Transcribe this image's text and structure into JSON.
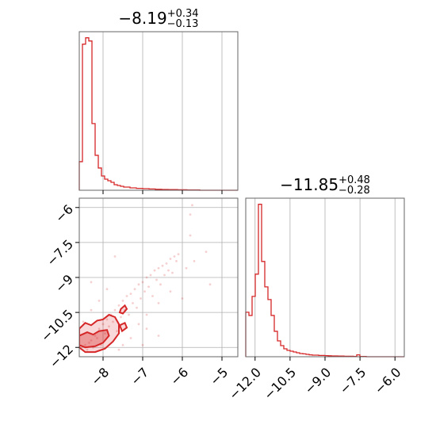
{
  "chart_data": [
    {
      "type": "histogram",
      "title_base": "−8.19",
      "title_sup": "+0.34",
      "title_sub": "−0.13",
      "xlim": [
        -8.6,
        -4.6
      ],
      "x_ticks": [
        -8,
        -7,
        -6,
        -5
      ],
      "y_ticks_shown": false,
      "grid": true,
      "color": "#d62728",
      "bin_width": 0.08,
      "bin_start": -8.6,
      "counts": [
        0.18,
        0.92,
        0.96,
        0.94,
        0.42,
        0.22,
        0.14,
        0.09,
        0.07,
        0.06,
        0.05,
        0.035,
        0.03,
        0.025,
        0.02,
        0.02,
        0.015,
        0.015,
        0.012,
        0.012,
        0.01,
        0.01,
        0.008,
        0.008,
        0.006,
        0.006,
        0.005,
        0.005,
        0.004,
        0.004,
        0.004,
        0.003,
        0.003,
        0.003,
        0.002,
        0.002,
        0.002,
        0.002,
        0.0,
        0.0,
        0.0,
        0.0,
        0.0,
        0.0,
        0.0,
        0.0,
        0.0,
        0.0,
        0.0,
        0.0
      ]
    },
    {
      "type": "scatter",
      "xlim": [
        -8.6,
        -4.6
      ],
      "ylim": [
        -12.4,
        -5.6
      ],
      "x_ticks": [
        -8,
        -7,
        -6,
        -5
      ],
      "y_ticks": [
        -6.0,
        -7.5,
        -9.0,
        -10.5,
        -12.0
      ],
      "grid": true,
      "color": "#d62728",
      "points": [
        [
          -8.45,
          -11.9
        ],
        [
          -8.3,
          -11.7
        ],
        [
          -8.2,
          -11.5
        ],
        [
          -8.1,
          -11.2
        ],
        [
          -8.0,
          -11.0
        ],
        [
          -7.9,
          -10.8
        ],
        [
          -7.8,
          -10.6
        ],
        [
          -7.7,
          -10.4
        ],
        [
          -7.6,
          -10.2
        ],
        [
          -7.5,
          -10.0
        ],
        [
          -7.4,
          -9.8
        ],
        [
          -7.3,
          -9.7
        ],
        [
          -7.2,
          -9.5
        ],
        [
          -7.1,
          -9.3
        ],
        [
          -7.0,
          -9.2
        ],
        [
          -6.9,
          -9.0
        ],
        [
          -6.8,
          -8.9
        ],
        [
          -6.7,
          -8.7
        ],
        [
          -6.6,
          -8.6
        ],
        [
          -6.5,
          -8.5
        ],
        [
          -6.4,
          -8.4
        ],
        [
          -6.3,
          -8.2
        ],
        [
          -6.2,
          -8.1
        ],
        [
          -6.1,
          -8.0
        ],
        [
          -8.4,
          -12.1
        ],
        [
          -8.35,
          -11.8
        ],
        [
          -8.25,
          -12.0
        ],
        [
          -8.15,
          -11.6
        ],
        [
          -8.05,
          -11.9
        ],
        [
          -7.95,
          -11.4
        ],
        [
          -7.85,
          -11.1
        ],
        [
          -7.75,
          -10.9
        ],
        [
          -7.65,
          -11.3
        ],
        [
          -7.55,
          -10.7
        ],
        [
          -7.45,
          -10.4
        ],
        [
          -7.35,
          -10.6
        ],
        [
          -7.25,
          -10.1
        ],
        [
          -7.15,
          -10.3
        ],
        [
          -7.05,
          -9.9
        ],
        [
          -6.95,
          -9.6
        ],
        [
          -6.85,
          -9.4
        ],
        [
          -6.75,
          -9.8
        ],
        [
          -6.65,
          -9.1
        ],
        [
          -6.55,
          -9.3
        ],
        [
          -6.45,
          -8.9
        ],
        [
          -6.35,
          -8.7
        ],
        [
          -6.25,
          -8.8
        ],
        [
          -6.15,
          -8.3
        ],
        [
          -8.5,
          -10.9
        ],
        [
          -8.3,
          -10.4
        ],
        [
          -8.1,
          -10.0
        ],
        [
          -7.9,
          -9.5
        ],
        [
          -8.3,
          -9.2
        ],
        [
          -7.7,
          -8.1
        ],
        [
          -6.9,
          -10.6
        ],
        [
          -7.1,
          -11.0
        ],
        [
          -7.3,
          -11.6
        ],
        [
          -7.5,
          -11.9
        ],
        [
          -6.6,
          -10.1
        ],
        [
          -6.3,
          -9.6
        ],
        [
          -5.9,
          -8.6
        ],
        [
          -5.7,
          -8.3
        ],
        [
          -5.4,
          -7.9
        ],
        [
          -5.3,
          -9.3
        ],
        [
          -5.8,
          -6.3
        ],
        [
          -5.75,
          -5.9
        ],
        [
          -5.8,
          -7.2
        ],
        [
          -6.0,
          -9.9
        ],
        [
          -6.9,
          -11.2
        ],
        [
          -7.6,
          -12.1
        ],
        [
          -7.0,
          -11.9
        ],
        [
          -6.6,
          -11.5
        ]
      ],
      "contours": [
        [
          [
            -8.6,
            -11.2
          ],
          [
            -8.45,
            -10.95
          ],
          [
            -8.3,
            -11.05
          ],
          [
            -8.15,
            -10.85
          ],
          [
            -8.0,
            -10.8
          ],
          [
            -7.85,
            -10.6
          ],
          [
            -7.7,
            -10.7
          ],
          [
            -7.6,
            -11.0
          ],
          [
            -7.6,
            -11.4
          ],
          [
            -7.75,
            -11.75
          ],
          [
            -7.95,
            -12.05
          ],
          [
            -8.2,
            -12.2
          ],
          [
            -8.45,
            -12.2
          ],
          [
            -8.6,
            -12.0
          ]
        ],
        [
          [
            -8.6,
            -11.5
          ],
          [
            -8.4,
            -11.35
          ],
          [
            -8.25,
            -11.45
          ],
          [
            -8.1,
            -11.3
          ],
          [
            -7.9,
            -11.25
          ],
          [
            -7.85,
            -11.5
          ],
          [
            -8.0,
            -11.8
          ],
          [
            -8.2,
            -11.95
          ],
          [
            -8.45,
            -12.0
          ],
          [
            -8.6,
            -11.9
          ]
        ],
        [
          [
            -7.55,
            -10.35
          ],
          [
            -7.45,
            -10.2
          ],
          [
            -7.4,
            -10.35
          ],
          [
            -7.5,
            -10.55
          ],
          [
            -7.58,
            -10.5
          ]
        ],
        [
          [
            -7.58,
            -11.05
          ],
          [
            -7.45,
            -10.95
          ],
          [
            -7.4,
            -11.15
          ],
          [
            -7.52,
            -11.3
          ]
        ]
      ]
    },
    {
      "type": "histogram",
      "title_base": "−11.85",
      "title_sup": "+0.48",
      "title_sub": "−0.28",
      "xlim": [
        -12.4,
        -5.6
      ],
      "x_ticks": [
        -12.0,
        -10.5,
        -9.0,
        -7.5,
        -6.0
      ],
      "x_tick_labels": [
        "−12.0",
        "−10.5",
        "−9.0",
        "−7.5",
        "−6.0"
      ],
      "y_ticks_shown": false,
      "grid": true,
      "color": "#d62728",
      "bin_width": 0.136,
      "bin_start": -12.4,
      "counts": [
        0.28,
        0.26,
        0.38,
        0.52,
        0.96,
        0.6,
        0.44,
        0.36,
        0.26,
        0.16,
        0.1,
        0.07,
        0.05,
        0.04,
        0.035,
        0.03,
        0.025,
        0.02,
        0.018,
        0.015,
        0.012,
        0.01,
        0.01,
        0.008,
        0.008,
        0.007,
        0.006,
        0.005,
        0.005,
        0.004,
        0.004,
        0.003,
        0.003,
        0.003,
        0.002,
        0.012,
        0.002,
        0.002,
        0.0,
        0.0,
        0.0,
        0.0,
        0.0,
        0.0,
        0.0,
        0.0,
        0.0,
        0.0,
        0.0,
        0.0
      ]
    }
  ]
}
